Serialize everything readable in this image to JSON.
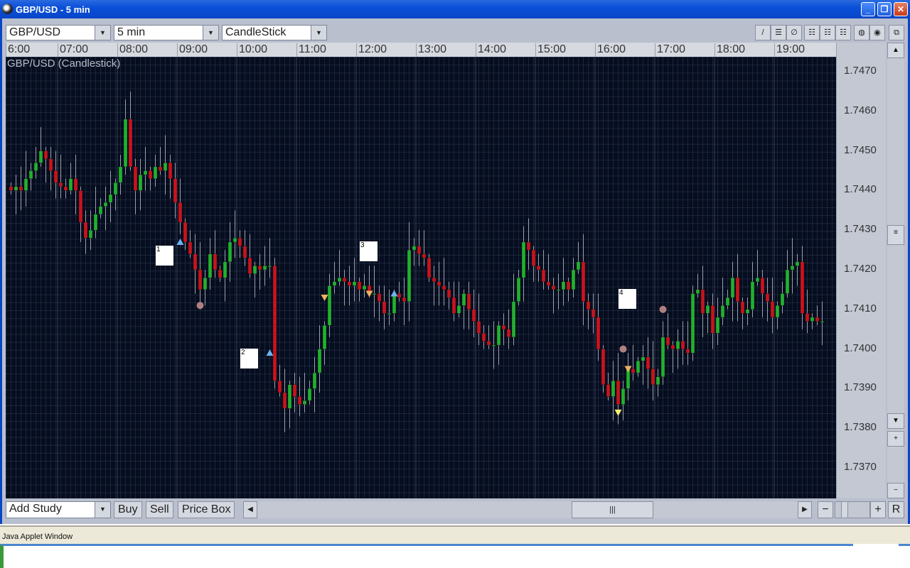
{
  "window": {
    "title": "GBP/USD - 5 min",
    "minimize": "_",
    "restore": "❐",
    "close": "✕"
  },
  "toolbar": {
    "symbol": "GBP/USD",
    "interval": "5 min",
    "chart_type": "CandleStick",
    "tools": [
      "line-tool",
      "horizontal-line-tool",
      "fib-tool",
      "grid-tool-1",
      "grid-tool-2",
      "grid-tool-3",
      "zoom-in-tool",
      "zoom-out-tool",
      "detach-tool"
    ]
  },
  "chart": {
    "label": "GBP/USD (Candlestick)",
    "time_labels": [
      "6:00",
      "07:00",
      "08:00",
      "09:00",
      "10:00",
      "11:00",
      "12:00",
      "13:00",
      "14:00",
      "15:00",
      "16:00",
      "17:00",
      "18:00",
      "19:00"
    ],
    "price_labels": [
      "1.7470",
      "1.7460",
      "1.7450",
      "1.7440",
      "1.7430",
      "1.7420",
      "1.7410",
      "1.7400",
      "1.7390",
      "1.7380",
      "1.7370"
    ],
    "colors": {
      "up": "#22b030",
      "down": "#c8141e",
      "background": "#060d1e",
      "wick": "#9aa0ad"
    }
  },
  "chart_data": {
    "type": "candlestick",
    "interval": "5 min",
    "start_time": "06:00",
    "ylim": [
      1.7362,
      1.7474
    ],
    "closes": [
      1.744,
      1.7441,
      1.744,
      1.7443,
      1.7445,
      1.7447,
      1.745,
      1.7448,
      1.7445,
      1.7442,
      1.7441,
      1.744,
      1.7443,
      1.744,
      1.7432,
      1.7428,
      1.743,
      1.7434,
      1.7436,
      1.7437,
      1.7439,
      1.7442,
      1.7446,
      1.7458,
      1.7446,
      1.744,
      1.7444,
      1.7445,
      1.7443,
      1.7446,
      1.7445,
      1.7447,
      1.7443,
      1.7437,
      1.7432,
      1.7427,
      1.7424,
      1.742,
      1.7415,
      1.7418,
      1.7424,
      1.742,
      1.7418,
      1.7422,
      1.7427,
      1.7428,
      1.7426,
      1.7423,
      1.7419,
      1.7421,
      1.742,
      1.7421,
      1.7421,
      1.7392,
      1.7389,
      1.7385,
      1.7391,
      1.7388,
      1.7386,
      1.7387,
      1.739,
      1.7394,
      1.74,
      1.7406,
      1.7416,
      1.7417,
      1.7418,
      1.7417,
      1.7416,
      1.7417,
      1.7415,
      1.7416,
      1.7414,
      1.7414,
      1.7412,
      1.7409,
      1.7409,
      1.7414,
      1.7413,
      1.7412,
      1.7425,
      1.7426,
      1.7424,
      1.7423,
      1.7418,
      1.7417,
      1.7416,
      1.7415,
      1.7413,
      1.7409,
      1.7411,
      1.7414,
      1.741,
      1.7407,
      1.7404,
      1.7402,
      1.7401,
      1.7401,
      1.7406,
      1.7405,
      1.7403,
      1.7412,
      1.7418,
      1.7427,
      1.7425,
      1.7421,
      1.742,
      1.7417,
      1.7416,
      1.7415,
      1.7415,
      1.7417,
      1.7415,
      1.742,
      1.7422,
      1.7412,
      1.741,
      1.7408,
      1.74,
      1.7391,
      1.7388,
      1.7392,
      1.7386,
      1.739,
      1.7395,
      1.7394,
      1.7397,
      1.7398,
      1.7395,
      1.7391,
      1.7393,
      1.7403,
      1.7401,
      1.74,
      1.7402,
      1.74,
      1.7399,
      1.7414,
      1.7415,
      1.7409,
      1.7411,
      1.7404,
      1.7408,
      1.7411,
      1.7413,
      1.7418,
      1.7412,
      1.7409,
      1.741,
      1.7417,
      1.7418,
      1.7414,
      1.7412,
      1.7408,
      1.7411,
      1.7414,
      1.742,
      1.7421,
      1.7422,
      1.7409,
      1.7407,
      1.7408,
      1.7407,
      1.7407
    ],
    "annotations": [
      {
        "type": "label",
        "text": "1",
        "bar": 30,
        "price": 1.7424
      },
      {
        "type": "label",
        "text": "2",
        "bar": 47,
        "price": 1.7398
      },
      {
        "type": "label",
        "text": "3",
        "bar": 71,
        "price": 1.7425
      },
      {
        "type": "label",
        "text": "4",
        "bar": 123,
        "price": 1.7413
      }
    ],
    "signals": [
      {
        "type": "buy",
        "bar": 34,
        "price": 1.7427,
        "color": "#6ab4f0"
      },
      {
        "type": "buy",
        "bar": 52,
        "price": 1.7399,
        "color": "#6ab4f0"
      },
      {
        "type": "buy",
        "bar": 77,
        "price": 1.7414,
        "color": "#6ab4f0"
      },
      {
        "type": "sell",
        "bar": 63,
        "price": 1.7413,
        "color": "#f0b060"
      },
      {
        "type": "sell",
        "bar": 72,
        "price": 1.7414,
        "color": "#f0b060"
      },
      {
        "type": "sell",
        "bar": 124,
        "price": 1.7395,
        "color": "#f0b060"
      },
      {
        "type": "sell",
        "bar": 122,
        "price": 1.7384,
        "color": "#f0f070"
      },
      {
        "type": "dot",
        "bar": 38,
        "price": 1.7411,
        "color": "#b08080"
      },
      {
        "type": "dot",
        "bar": 131,
        "price": 1.741,
        "color": "#b08080"
      },
      {
        "type": "dot",
        "bar": 123,
        "price": 1.74,
        "color": "#b08080"
      }
    ]
  },
  "bottom": {
    "add_study": "Add Study",
    "buy": "Buy",
    "sell": "Sell",
    "price_box": "Price Box",
    "scroll_thumb": "|||",
    "zoom_minus": "−",
    "zoom_plus": "+",
    "reset": "R"
  },
  "vscroll": {
    "up": "▲",
    "down": "▼",
    "thumb": "≡",
    "plus": "+",
    "minus": "−"
  },
  "status": {
    "text": "Java Applet Window"
  }
}
